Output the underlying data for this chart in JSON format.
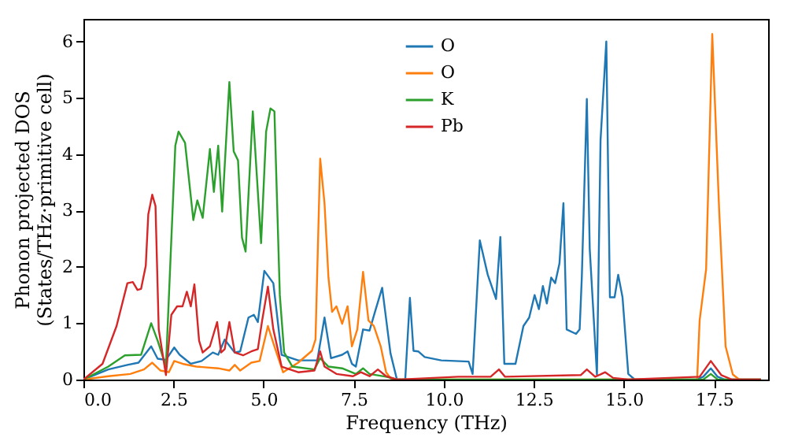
{
  "chart_data": {
    "type": "line",
    "xlabel": "Frequency (THz)",
    "ylabel": "Phonon projected DOS\n(States/THz·primitive cell)",
    "xlim": [
      0,
      19
    ],
    "ylim": [
      0,
      6.4
    ],
    "xticks": [
      {
        "value": 0,
        "label": "0.0"
      },
      {
        "value": 2.5,
        "label": "2.5"
      },
      {
        "value": 5,
        "label": "5.0"
      },
      {
        "value": 7.5,
        "label": "7.5"
      },
      {
        "value": 10,
        "label": "10.0"
      },
      {
        "value": 12.5,
        "label": "12.5"
      },
      {
        "value": 15,
        "label": "15.0"
      },
      {
        "value": 17.5,
        "label": "17.5"
      }
    ],
    "yticks": [
      0,
      1,
      2,
      3,
      4,
      5,
      6
    ],
    "grid": false,
    "legend": "top",
    "marker": "none",
    "line_style": "solid",
    "series": [
      {
        "name": "O",
        "color": "#1f77b4",
        "x": [
          0,
          0.69,
          1.22,
          1.53,
          1.88,
          2.06,
          2.29,
          2.52,
          2.67,
          2.98,
          3.28,
          3.59,
          3.74,
          3.92,
          4.2,
          4.35,
          4.58,
          4.73,
          4.84,
          5.02,
          5.27,
          5.5,
          5.96,
          6.49,
          6.69,
          6.87,
          7.18,
          7.33,
          7.45,
          7.56,
          7.76,
          7.94,
          8.09,
          8.29,
          8.52,
          8.7,
          8.93,
          9.06,
          9.16,
          9.29,
          9.47,
          9.93,
          10.69,
          10.8,
          11.0,
          11.22,
          11.45,
          11.57,
          11.68,
          11.99,
          12.21,
          12.37,
          12.52,
          12.64,
          12.75,
          12.86,
          12.98,
          13.09,
          13.21,
          13.32,
          13.41,
          13.67,
          13.77,
          13.83,
          13.97,
          14.05,
          14.25,
          14.35,
          14.51,
          14.61,
          14.74,
          14.84,
          14.96,
          15.12,
          15.3,
          17.0,
          17.2,
          17.41,
          17.6,
          17.8,
          18.8
        ],
        "values": [
          0,
          0.18,
          0.26,
          0.3,
          0.59,
          0.37,
          0.35,
          0.57,
          0.44,
          0.28,
          0.33,
          0.48,
          0.44,
          0.71,
          0.48,
          0.5,
          1.1,
          1.15,
          1.02,
          1.93,
          1.71,
          0.44,
          0.34,
          0.34,
          1.1,
          0.38,
          0.44,
          0.5,
          0.28,
          0.23,
          0.89,
          0.87,
          1.2,
          1.63,
          0.47,
          0,
          0,
          1.45,
          0.51,
          0.5,
          0.4,
          0.34,
          0.32,
          0.1,
          2.47,
          1.86,
          1.43,
          2.53,
          0.28,
          0.28,
          0.95,
          1.1,
          1.5,
          1.25,
          1.66,
          1.35,
          1.81,
          1.71,
          2.06,
          3.13,
          0.89,
          0.81,
          0.89,
          1.81,
          4.98,
          2.32,
          0.09,
          4.25,
          6.0,
          1.46,
          1.46,
          1.86,
          1.46,
          0.1,
          0,
          0,
          0.05,
          0.2,
          0.05,
          0,
          0
        ]
      },
      {
        "name": "O",
        "color": "#ff7f0e",
        "x": [
          0,
          0.69,
          1.3,
          1.68,
          1.91,
          2.14,
          2.37,
          2.52,
          2.75,
          3.13,
          3.74,
          4.05,
          4.2,
          4.35,
          4.66,
          4.89,
          5.12,
          5.3,
          5.54,
          5.96,
          6.34,
          6.44,
          6.57,
          6.69,
          6.8,
          6.9,
          7.02,
          7.18,
          7.33,
          7.45,
          7.6,
          7.76,
          7.91,
          8.06,
          8.25,
          8.4,
          8.55,
          17.03,
          17.1,
          17.28,
          17.45,
          17.64,
          17.82,
          18.02,
          18.2,
          18.8
        ],
        "values": [
          0,
          0.06,
          0.1,
          0.18,
          0.3,
          0.16,
          0.13,
          0.33,
          0.28,
          0.23,
          0.2,
          0.16,
          0.26,
          0.16,
          0.3,
          0.33,
          0.95,
          0.59,
          0.13,
          0.3,
          0.51,
          0.71,
          3.92,
          3.13,
          1.81,
          1.2,
          1.3,
          0.99,
          1.3,
          0.59,
          0.89,
          1.91,
          1.05,
          0.95,
          0.59,
          0.13,
          0,
          0,
          1.05,
          1.96,
          6.13,
          3.03,
          0.59,
          0.09,
          0,
          0
        ]
      },
      {
        "name": "K",
        "color": "#2ca02c",
        "x": [
          0,
          0.69,
          1.15,
          1.6,
          1.88,
          2.06,
          2.29,
          2.55,
          2.64,
          2.82,
          3.05,
          3.16,
          3.31,
          3.51,
          3.62,
          3.74,
          3.85,
          4.05,
          4.17,
          4.29,
          4.4,
          4.5,
          4.7,
          4.93,
          5.07,
          5.19,
          5.3,
          5.45,
          5.57,
          5.8,
          6.41,
          6.57,
          6.8,
          7.18,
          7.56,
          7.76,
          7.94,
          8.4,
          8.7,
          17.2,
          17.41,
          17.6,
          18.8
        ],
        "values": [
          0,
          0.23,
          0.43,
          0.44,
          1.0,
          0.69,
          0.23,
          4.15,
          4.4,
          4.2,
          2.83,
          3.18,
          2.87,
          4.09,
          3.33,
          4.15,
          2.98,
          5.28,
          4.05,
          3.89,
          2.52,
          2.27,
          4.76,
          2.42,
          4.4,
          4.81,
          4.76,
          1.5,
          0.48,
          0.23,
          0.18,
          0.38,
          0.23,
          0.2,
          0.1,
          0.2,
          0.1,
          0.05,
          0,
          0,
          0.1,
          0,
          0
        ]
      },
      {
        "name": "Pb",
        "color": "#d62728",
        "x": [
          0,
          0.53,
          0.92,
          1.22,
          1.37,
          1.5,
          1.6,
          1.73,
          1.8,
          1.91,
          2.0,
          2.09,
          2.29,
          2.44,
          2.6,
          2.75,
          2.87,
          2.98,
          3.08,
          3.21,
          3.31,
          3.51,
          3.71,
          3.82,
          3.92,
          4.05,
          4.2,
          4.43,
          4.66,
          4.84,
          4.96,
          5.12,
          5.27,
          5.5,
          5.96,
          6.41,
          6.57,
          6.69,
          7.02,
          7.48,
          7.7,
          7.94,
          8.17,
          8.4,
          8.7,
          10.4,
          11.3,
          11.53,
          11.7,
          13.8,
          13.97,
          14.2,
          14.48,
          14.7,
          15.12,
          17.1,
          17.41,
          17.7,
          18.0,
          18.8
        ],
        "values": [
          0,
          0.28,
          0.95,
          1.71,
          1.73,
          1.59,
          1.61,
          2.02,
          2.93,
          3.28,
          3.08,
          0.89,
          0.08,
          1.15,
          1.3,
          1.3,
          1.56,
          1.3,
          1.69,
          0.69,
          0.48,
          0.59,
          1.02,
          0.48,
          0.54,
          1.02,
          0.48,
          0.43,
          0.5,
          0.54,
          1.05,
          1.65,
          0.89,
          0.23,
          0.13,
          0.16,
          0.5,
          0.23,
          0.1,
          0.06,
          0.13,
          0.06,
          0.18,
          0.06,
          0,
          0.05,
          0.05,
          0.18,
          0.05,
          0.08,
          0.18,
          0.05,
          0.13,
          0.03,
          0,
          0.05,
          0.33,
          0.08,
          0,
          0
        ]
      }
    ]
  }
}
